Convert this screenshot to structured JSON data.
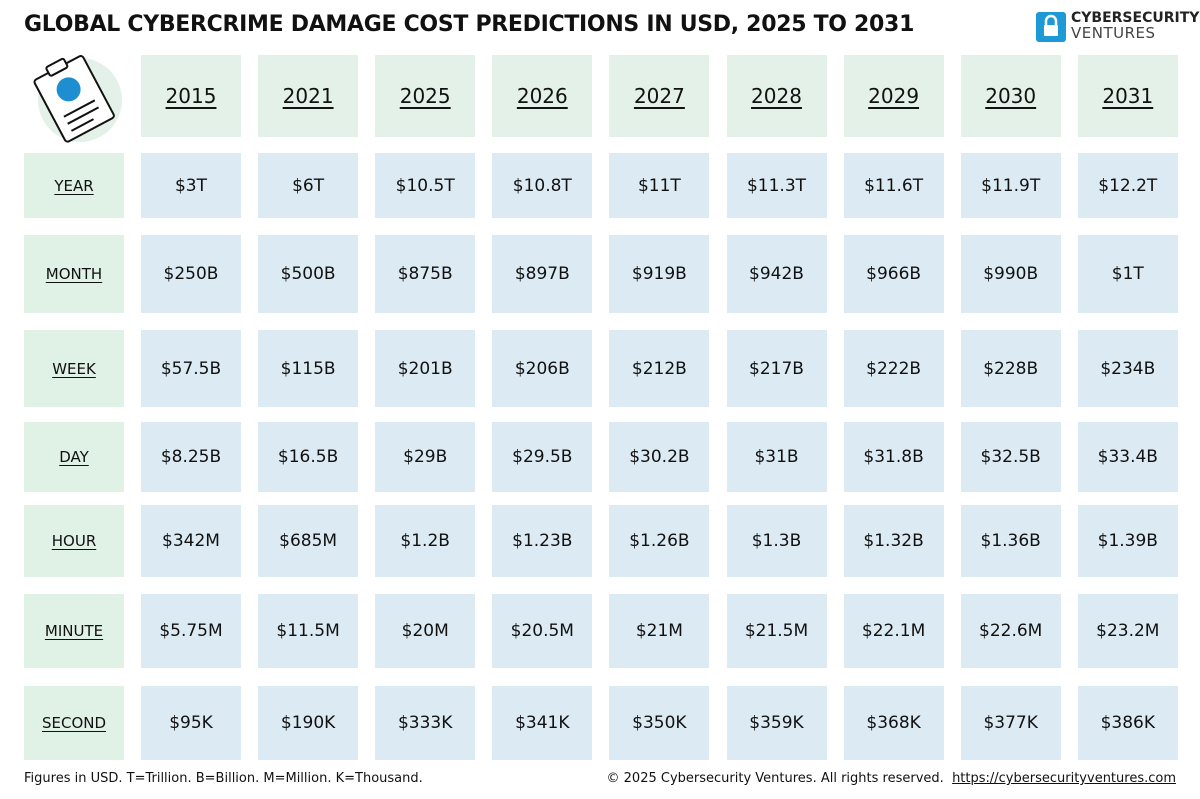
{
  "header": {
    "title": "GLOBAL CYBERCRIME DAMAGE COST PREDICTIONS IN USD, 2025 TO 2031",
    "logo": {
      "line1": "CYBERSECURITY",
      "line2": "VENTURES"
    }
  },
  "table": {
    "columns": [
      "2015",
      "2021",
      "2025",
      "2026",
      "2027",
      "2028",
      "2029",
      "2030",
      "2031"
    ],
    "rows": [
      {
        "label": "YEAR",
        "cells": [
          "$3T",
          "$6T",
          "$10.5T",
          "$10.8T",
          "$11T",
          "$11.3T",
          "$11.6T",
          "$11.9T",
          "$12.2T"
        ]
      },
      {
        "label": "MONTH",
        "cells": [
          "$250B",
          "$500B",
          "$875B",
          "$897B",
          "$919B",
          "$942B",
          "$966B",
          "$990B",
          "$1T"
        ]
      },
      {
        "label": "WEEK",
        "cells": [
          "$57.5B",
          "$115B",
          "$201B",
          "$206B",
          "$212B",
          "$217B",
          "$222B",
          "$228B",
          "$234B"
        ]
      },
      {
        "label": "DAY",
        "cells": [
          "$8.25B",
          "$16.5B",
          "$29B",
          "$29.5B",
          "$30.2B",
          "$31B",
          "$31.8B",
          "$32.5B",
          "$33.4B"
        ]
      },
      {
        "label": "HOUR",
        "cells": [
          "$342M",
          "$685M",
          "$1.2B",
          "$1.23B",
          "$1.26B",
          "$1.3B",
          "$1.32B",
          "$1.36B",
          "$1.39B"
        ]
      },
      {
        "label": "MINUTE",
        "cells": [
          "$5.75M",
          "$11.5M",
          "$20M",
          "$20.5M",
          "$21M",
          "$21.5M",
          "$22.1M",
          "$22.6M",
          "$23.2M"
        ]
      },
      {
        "label": "SECOND",
        "cells": [
          "$95K",
          "$190K",
          "$333K",
          "$341K",
          "$350K",
          "$359K",
          "$368K",
          "$377K",
          "$386K"
        ]
      }
    ]
  },
  "footer": {
    "note": "Figures in USD. T=Trillion. B=Billion. M=Million. K=Thousand.",
    "copyright": "© 2025 Cybersecurity Ventures. All rights reserved.",
    "link": "https://cybersecurityventures.com"
  }
}
